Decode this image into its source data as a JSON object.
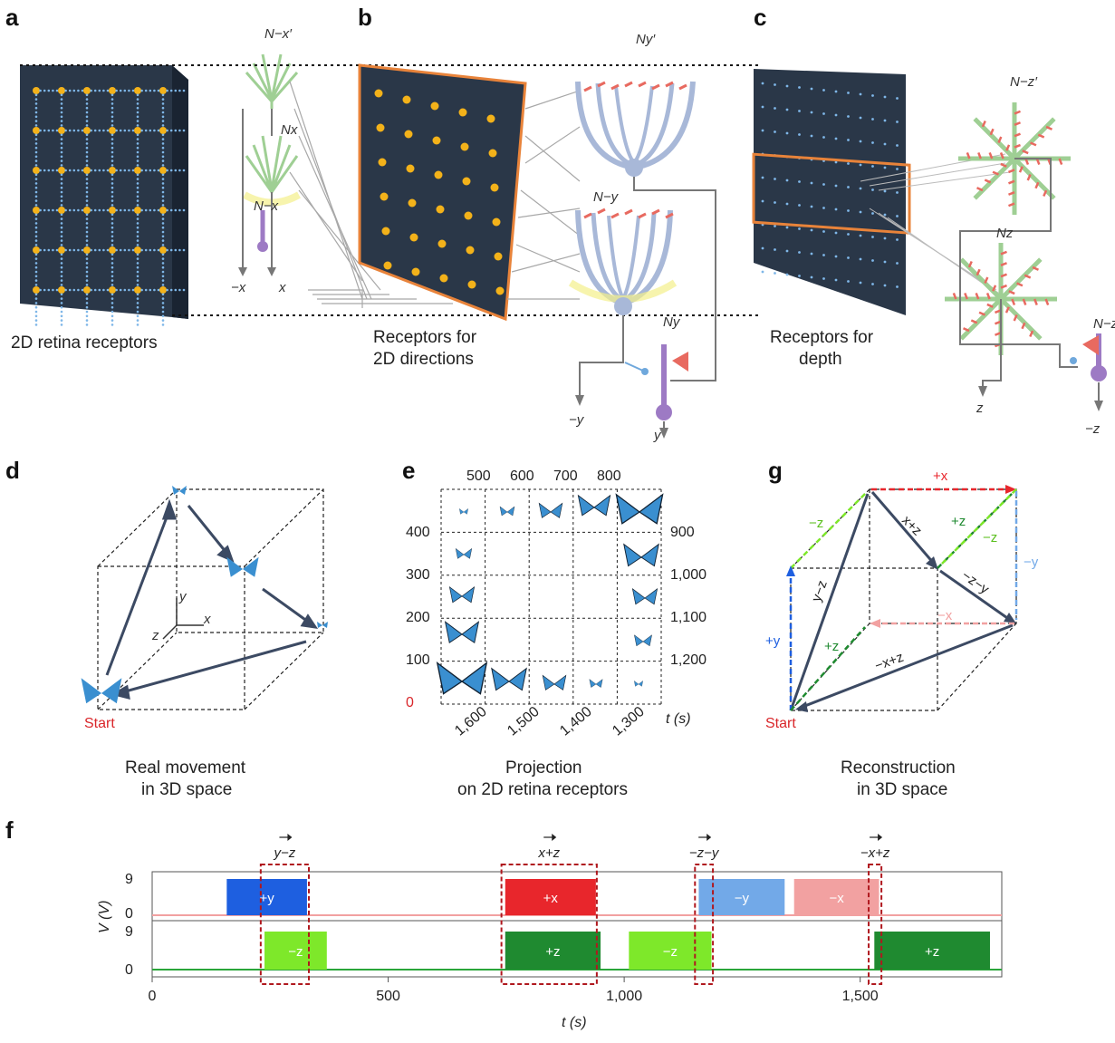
{
  "panels": {
    "a": {
      "letter": "a",
      "caption": "2D retina receptors",
      "neuron_labels": [
        "N−x′",
        "Nx",
        "N−x"
      ],
      "outputs": [
        "−x",
        "x"
      ]
    },
    "b": {
      "letter": "b",
      "caption_line1": "Receptors for",
      "caption_line2": "2D directions",
      "neuron_labels": [
        "Ny′",
        "N−y",
        "Ny"
      ],
      "outputs": [
        "−y",
        "y"
      ]
    },
    "c": {
      "letter": "c",
      "caption_line1": "Receptors for",
      "caption_line2": "depth",
      "neuron_labels": [
        "N−z′",
        "Nz",
        "N−z"
      ],
      "outputs": [
        "z",
        "−z"
      ]
    },
    "d": {
      "letter": "d",
      "caption_line1": "Real movement",
      "caption_line2": "in 3D space",
      "start": "Start",
      "axes": [
        "y",
        "x",
        "z"
      ]
    },
    "e": {
      "letter": "e",
      "caption_line1": "Projection",
      "caption_line2": "on 2D retina receptors",
      "top_ticks": [
        "500",
        "600",
        "700",
        "800"
      ],
      "left_ticks": [
        "400",
        "300",
        "200",
        "100",
        "0"
      ],
      "right_ticks": [
        "900",
        "1,000",
        "1,100",
        "1,200"
      ],
      "bottom_ticks": [
        "1,600",
        "1,500",
        "1,400",
        "1,300"
      ],
      "t_label": "t (s)"
    },
    "g": {
      "letter": "g",
      "caption_line1": "Reconstruction",
      "caption_line2": "in 3D space",
      "start": "Start",
      "vec_labels": [
        "+x",
        "−z",
        "+z",
        "−z",
        "x+z",
        "−z−y",
        "−y",
        "y−z",
        "−x",
        "+y",
        "+z",
        "−x+z"
      ]
    },
    "f": {
      "letter": "f",
      "ylabel": "V (V)",
      "xlabel": "t (s)",
      "yticks_top": [
        "9",
        "0"
      ],
      "yticks_bottom": [
        "9",
        "0"
      ],
      "xticks": [
        "0",
        "500",
        "1,000",
        "1,500"
      ],
      "vector_labels": [
        "y−z",
        "x+z",
        "−z−y",
        "−x+z"
      ],
      "top_bars": [
        {
          "label": "+y",
          "t0": 158,
          "t1": 328,
          "color": "#1e5fe0"
        },
        {
          "label": "+x",
          "t0": 748,
          "t1": 940,
          "color": "#e8262c"
        },
        {
          "label": "−y",
          "t0": 1158,
          "t1": 1340,
          "color": "#72a9e8"
        },
        {
          "label": "−x",
          "t0": 1360,
          "t1": 1540,
          "color": "#f2a1a1"
        }
      ],
      "bottom_bars": [
        {
          "label": "−z",
          "t0": 238,
          "t1": 370,
          "color": "#7ee82a"
        },
        {
          "label": "+z",
          "t0": 748,
          "t1": 950,
          "color": "#1f8a30"
        },
        {
          "label": "−z",
          "t0": 1010,
          "t1": 1185,
          "color": "#7ee82a"
        },
        {
          "label": "+z",
          "t0": 1530,
          "t1": 1775,
          "color": "#1f8a30"
        }
      ],
      "highlight_windows": [
        [
          230,
          332
        ],
        [
          740,
          942
        ],
        [
          1150,
          1188
        ],
        [
          1518,
          1545
        ]
      ]
    }
  },
  "colors": {
    "retina": "#2a3748",
    "dot": "#f3b21a",
    "orange": "#e8833a",
    "neuron": "#a8b8d8",
    "synapse": "#e86a60",
    "dendrite_green": "#9fcf94",
    "arrow": "#3c4a63",
    "red_start": "#d9262a"
  }
}
